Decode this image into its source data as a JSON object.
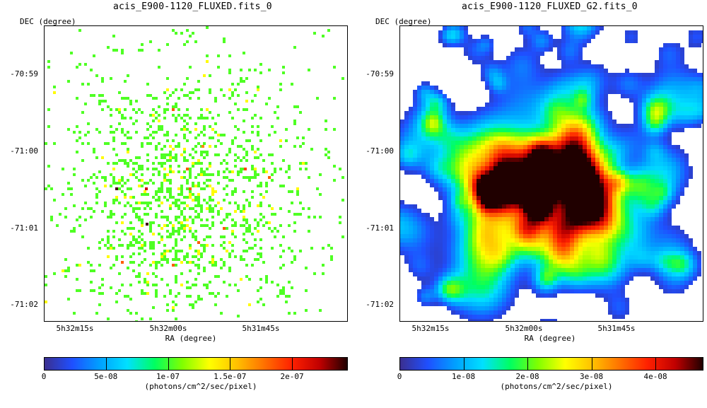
{
  "colors": {
    "colormap": [
      "#3b2f8f",
      "#1f4fff",
      "#00a0ff",
      "#00e0ff",
      "#00ff60",
      "#80ff00",
      "#ffff00",
      "#ffc000",
      "#ff7000",
      "#ff2000",
      "#c00000",
      "#200000"
    ]
  },
  "chart_data": [
    {
      "type": "heatmap",
      "title": "acis_E900-1120_FLUXED.fits_0",
      "xlabel": "RA (degree)",
      "ylabel": "DEC (degree)",
      "x_ticks": [
        "5h32m15s",
        "5h32m00s",
        "5h31m45s"
      ],
      "y_ticks": [
        "-70:59",
        "-71:00",
        "-71:01",
        "-71:02"
      ],
      "colorbar": {
        "label": "(photons/cm^2/sec/pixel)",
        "range": [
          0,
          2.45e-07
        ],
        "ticks": [
          0,
          5e-08,
          1e-07,
          1.5e-07,
          2e-07
        ],
        "tick_labels": [
          "0",
          "5e-08",
          "1e-07",
          "1.5e-07",
          "2e-07"
        ]
      },
      "style": "sparse pixel counts, mostly green single-photon pixels with a few yellow/red/black hot pixels concentrated toward center"
    },
    {
      "type": "heatmap",
      "title": "acis_E900-1120_FLUXED_G2.fits_0",
      "xlabel": "RA (degree)",
      "ylabel": "DEC (degree)",
      "x_ticks": [
        "5h32m15s",
        "5h32m00s",
        "5h31m45s"
      ],
      "y_ticks": [
        "-70:59",
        "-71:00",
        "-71:01",
        "-71:02"
      ],
      "colorbar": {
        "label": "(photons/cm^2/sec/pixel)",
        "range": [
          0,
          4.75e-08
        ],
        "ticks": [
          0,
          1e-08,
          2e-08,
          3e-08,
          4e-08
        ],
        "tick_labels": [
          "0",
          "1e-08",
          "2e-08",
          "3e-08",
          "4e-08"
        ]
      },
      "style": "Gaussian-smoothed (G2) diffuse emission, peak near center"
    }
  ]
}
